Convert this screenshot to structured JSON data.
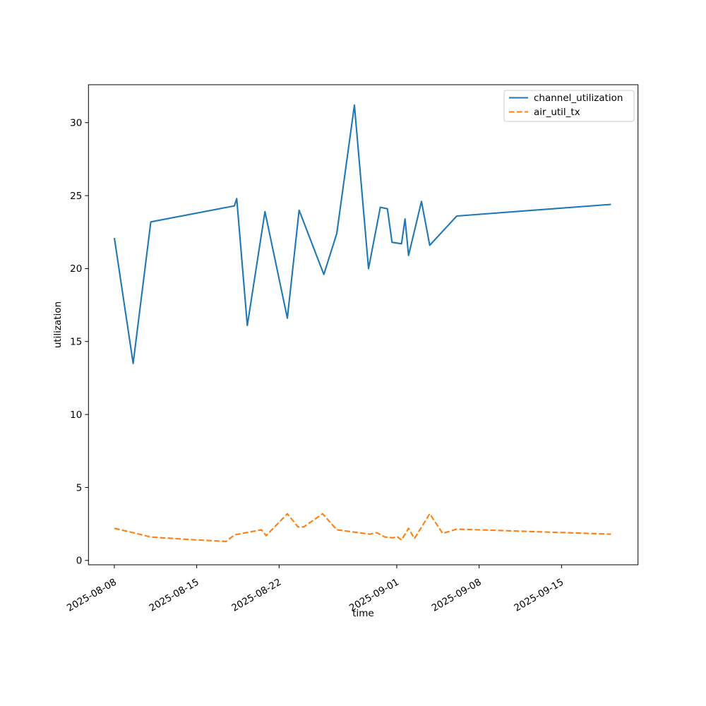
{
  "figure": {
    "background": "#ffffff"
  },
  "axes": {
    "xlabel": "time",
    "ylabel": "utilization",
    "x_tick_labels": [
      "2025-08-08",
      "2025-08-15",
      "2025-08-22",
      "2025-09-01",
      "2025-09-08",
      "2025-09-15"
    ],
    "y_tick_labels": [
      "0",
      "5",
      "10",
      "15",
      "20",
      "25",
      "30"
    ]
  },
  "legend": {
    "position": "upper right",
    "items": [
      {
        "label": "channel_utilization",
        "color": "#1f77b4",
        "line_style": "solid"
      },
      {
        "label": "air_util_tx",
        "color": "#ff7f0e",
        "line_style": "dashed"
      }
    ]
  },
  "chart_data": {
    "type": "line",
    "title": "",
    "xlabel": "time",
    "ylabel": "utilization",
    "x_origin_date": "2025-08-08",
    "x_units": "days since 2025-08-08",
    "xlim": [
      -2.2,
      44.5
    ],
    "ylim": [
      -0.3,
      32.6
    ],
    "grid": false,
    "legend_position": "upper right",
    "x_ticks": [
      {
        "day": 0,
        "label": "2025-08-08"
      },
      {
        "day": 7,
        "label": "2025-08-15"
      },
      {
        "day": 14,
        "label": "2025-08-22"
      },
      {
        "day": 24,
        "label": "2025-09-01"
      },
      {
        "day": 31,
        "label": "2025-09-08"
      },
      {
        "day": 38,
        "label": "2025-09-15"
      }
    ],
    "y_ticks": [
      0,
      5,
      10,
      15,
      20,
      25,
      30
    ],
    "series": [
      {
        "name": "channel_utilization",
        "color": "#1f77b4",
        "style": "solid",
        "points": [
          [
            0,
            22.1
          ],
          [
            1.6,
            13.5
          ],
          [
            3.1,
            23.2
          ],
          [
            10.2,
            24.3
          ],
          [
            10.4,
            24.8
          ],
          [
            11.3,
            16.1
          ],
          [
            12.8,
            23.9
          ],
          [
            14.7,
            16.6
          ],
          [
            15.7,
            24.0
          ],
          [
            17.8,
            19.6
          ],
          [
            18.9,
            22.4
          ],
          [
            20.4,
            31.2
          ],
          [
            21.6,
            20.0
          ],
          [
            22.6,
            24.2
          ],
          [
            23.2,
            24.1
          ],
          [
            23.6,
            21.8
          ],
          [
            24.4,
            21.7
          ],
          [
            24.7,
            23.4
          ],
          [
            25.0,
            20.9
          ],
          [
            26.1,
            24.6
          ],
          [
            26.8,
            21.6
          ],
          [
            29.1,
            23.6
          ],
          [
            42.2,
            24.4
          ]
        ]
      },
      {
        "name": "air_util_tx",
        "color": "#ff7f0e",
        "style": "dashed",
        "points": [
          [
            0,
            2.2
          ],
          [
            1.6,
            1.9
          ],
          [
            3.1,
            1.6
          ],
          [
            6.0,
            1.45
          ],
          [
            9.5,
            1.3
          ],
          [
            10.2,
            1.75
          ],
          [
            12.5,
            2.1
          ],
          [
            12.9,
            1.7
          ],
          [
            14.7,
            3.2
          ],
          [
            15.6,
            2.3
          ],
          [
            16.1,
            2.3
          ],
          [
            17.7,
            3.2
          ],
          [
            18.9,
            2.1
          ],
          [
            21.7,
            1.8
          ],
          [
            22.3,
            1.9
          ],
          [
            23.0,
            1.6
          ],
          [
            23.7,
            1.55
          ],
          [
            24.0,
            1.65
          ],
          [
            24.4,
            1.4
          ],
          [
            25.0,
            2.2
          ],
          [
            25.5,
            1.5
          ],
          [
            26.8,
            3.2
          ],
          [
            27.9,
            1.85
          ],
          [
            29.1,
            2.15
          ],
          [
            42.2,
            1.8
          ]
        ]
      }
    ]
  }
}
